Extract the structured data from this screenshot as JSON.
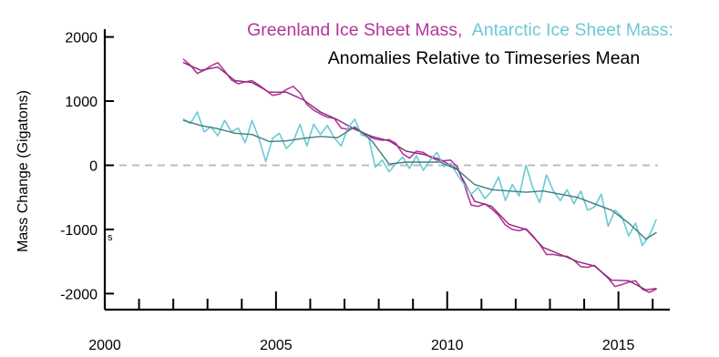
{
  "chart_data": {
    "type": "line",
    "title": {
      "greenland": "Greenland Ice Sheet Mass,",
      "antarctic": "Antarctic Ice Sheet Mass:",
      "subtitle": "Anomalies Relative to Timeseries Mean"
    },
    "xlabel": "",
    "ylabel": "Mass Change (Gigatons)",
    "xlim": [
      2000,
      2016.5
    ],
    "ylim": [
      -2250,
      2150
    ],
    "x_ticks": [
      2000,
      2005,
      2010,
      2015
    ],
    "y_ticks": [
      2000,
      1000,
      0,
      -1000,
      -2000
    ],
    "x_tick_labels": [
      "2000",
      "2005",
      "2010",
      "2015"
    ],
    "y_tick_labels": [
      "2000",
      "1000",
      "0",
      "-1000",
      "-2000"
    ],
    "zero_line": true,
    "grid": false,
    "stray_mark": "s",
    "series": [
      {
        "key": "greenland_raw",
        "color": "#b5359a",
        "x": [
          2002.3,
          2002.5,
          2002.7,
          2002.9,
          2003.1,
          2003.3,
          2003.5,
          2003.7,
          2003.9,
          2004.1,
          2004.3,
          2004.5,
          2004.7,
          2004.9,
          2005.1,
          2005.3,
          2005.5,
          2005.7,
          2005.9,
          2006.1,
          2006.3,
          2006.5,
          2006.7,
          2006.9,
          2007.1,
          2007.3,
          2007.5,
          2007.7,
          2007.9,
          2008.1,
          2008.3,
          2008.5,
          2008.7,
          2008.9,
          2009.1,
          2009.3,
          2009.5,
          2009.7,
          2009.9,
          2010.1,
          2010.3,
          2010.5,
          2010.7,
          2010.9,
          2011.1,
          2011.3,
          2011.5,
          2011.7,
          2011.9,
          2012.1,
          2012.3,
          2012.5,
          2012.7,
          2012.9,
          2013.1,
          2013.3,
          2013.5,
          2013.7,
          2013.9,
          2014.1,
          2014.3,
          2014.5,
          2014.7,
          2014.9,
          2015.1,
          2015.3,
          2015.5,
          2015.7,
          2015.9,
          2016.1
        ],
        "y": [
          1650,
          1560,
          1430,
          1480,
          1550,
          1600,
          1470,
          1330,
          1270,
          1300,
          1320,
          1250,
          1170,
          1090,
          1110,
          1180,
          1230,
          1130,
          950,
          860,
          800,
          750,
          730,
          580,
          560,
          580,
          520,
          450,
          410,
          390,
          400,
          340,
          180,
          110,
          220,
          200,
          130,
          80,
          70,
          80,
          -30,
          -300,
          -620,
          -640,
          -600,
          -680,
          -780,
          -930,
          -1000,
          -1020,
          -990,
          -1100,
          -1230,
          -1390,
          -1390,
          -1410,
          -1420,
          -1480,
          -1580,
          -1590,
          -1560,
          -1660,
          -1760,
          -1890,
          -1860,
          -1820,
          -1800,
          -1930,
          -1980,
          -1930
        ]
      },
      {
        "key": "greenland_smooth",
        "color": "#8a2a7e",
        "x": [
          2002.3,
          2002.8,
          2003.3,
          2003.8,
          2004.3,
          2004.8,
          2005.3,
          2005.8,
          2006.3,
          2006.8,
          2007.3,
          2007.8,
          2008.3,
          2008.8,
          2009.3,
          2009.8,
          2010.3,
          2010.8,
          2011.3,
          2011.8,
          2012.3,
          2012.8,
          2013.3,
          2013.8,
          2014.3,
          2014.8,
          2015.3,
          2015.8,
          2016.1
        ],
        "y": [
          1600,
          1480,
          1530,
          1320,
          1290,
          1140,
          1140,
          1020,
          830,
          710,
          560,
          450,
          380,
          220,
          170,
          90,
          -60,
          -560,
          -640,
          -920,
          -1000,
          -1280,
          -1390,
          -1500,
          -1570,
          -1790,
          -1800,
          -1940,
          -1920
        ]
      },
      {
        "key": "antarctic_raw",
        "color": "#6cc9d4",
        "x": [
          2002.3,
          2002.5,
          2002.7,
          2002.9,
          2003.1,
          2003.3,
          2003.5,
          2003.7,
          2003.9,
          2004.1,
          2004.3,
          2004.5,
          2004.7,
          2004.9,
          2005.1,
          2005.3,
          2005.5,
          2005.7,
          2005.9,
          2006.1,
          2006.3,
          2006.5,
          2006.7,
          2006.9,
          2007.1,
          2007.3,
          2007.5,
          2007.7,
          2007.9,
          2008.1,
          2008.3,
          2008.5,
          2008.7,
          2008.9,
          2009.1,
          2009.3,
          2009.5,
          2009.7,
          2009.9,
          2010.1,
          2010.3,
          2010.5,
          2010.7,
          2010.9,
          2011.1,
          2011.3,
          2011.5,
          2011.7,
          2011.9,
          2012.1,
          2012.3,
          2012.5,
          2012.7,
          2012.9,
          2013.1,
          2013.3,
          2013.5,
          2013.7,
          2013.9,
          2014.1,
          2014.3,
          2014.5,
          2014.7,
          2014.9,
          2015.1,
          2015.3,
          2015.5,
          2015.7,
          2015.9,
          2016.1
        ],
        "y": [
          720,
          650,
          830,
          520,
          600,
          460,
          700,
          520,
          580,
          350,
          700,
          420,
          60,
          420,
          500,
          260,
          370,
          640,
          300,
          640,
          480,
          620,
          430,
          300,
          580,
          720,
          470,
          450,
          -30,
          80,
          -100,
          20,
          130,
          -50,
          150,
          -80,
          80,
          200,
          -20,
          30,
          -150,
          -300,
          -450,
          -350,
          -520,
          -400,
          -180,
          -550,
          -300,
          -480,
          0,
          -350,
          -580,
          -150,
          -400,
          -550,
          -380,
          -600,
          -400,
          -700,
          -650,
          -450,
          -950,
          -700,
          -800,
          -1100,
          -900,
          -1250,
          -1100,
          -850
        ]
      },
      {
        "key": "antarctic_smooth",
        "color": "#3f7f80",
        "x": [
          2002.3,
          2002.8,
          2003.3,
          2003.8,
          2004.3,
          2004.8,
          2005.3,
          2005.8,
          2006.3,
          2006.8,
          2007.3,
          2007.8,
          2008.3,
          2008.8,
          2009.3,
          2009.8,
          2010.3,
          2010.8,
          2011.3,
          2011.8,
          2012.3,
          2012.8,
          2013.3,
          2013.8,
          2014.3,
          2014.8,
          2015.3,
          2015.8,
          2016.1
        ],
        "y": [
          700,
          620,
          570,
          500,
          480,
          370,
          380,
          420,
          450,
          430,
          600,
          380,
          20,
          50,
          50,
          50,
          -70,
          -300,
          -380,
          -400,
          -420,
          -400,
          -450,
          -500,
          -600,
          -700,
          -900,
          -1150,
          -1050
        ]
      }
    ]
  }
}
